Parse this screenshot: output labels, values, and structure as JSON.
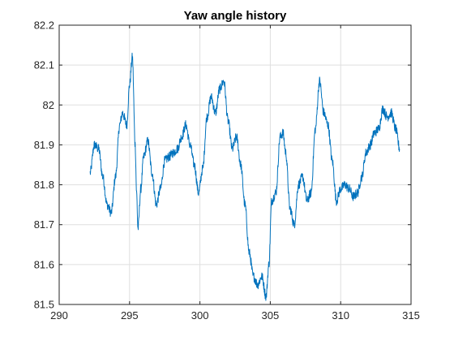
{
  "chart_data": {
    "type": "line",
    "title": "Yaw angle history",
    "xlabel": "",
    "ylabel": "",
    "xlim": [
      290,
      315
    ],
    "ylim": [
      81.5,
      82.2
    ],
    "x_ticks": [
      290,
      295,
      300,
      305,
      310,
      315
    ],
    "y_ticks": [
      81.5,
      81.6,
      81.7,
      81.8,
      81.9,
      82,
      82.1,
      82.2
    ],
    "x_tick_labels": [
      "290",
      "295",
      "300",
      "305",
      "310",
      "315"
    ],
    "y_tick_labels": [
      "81.5",
      "81.6",
      "81.7",
      "81.8",
      "81.9",
      "82",
      "82.1",
      "82.2"
    ],
    "grid": true,
    "legend": "none",
    "series": [
      {
        "color": "#0072BD",
        "noise_amplitude": 0.012,
        "x": [
          292.2,
          292.5,
          292.8,
          293.1,
          293.4,
          293.7,
          294.0,
          294.3,
          294.5,
          294.8,
          295.0,
          295.2,
          295.4,
          295.5,
          295.6,
          295.8,
          296.0,
          296.3,
          296.6,
          296.9,
          297.2,
          297.5,
          297.8,
          298.1,
          298.4,
          298.7,
          299.0,
          299.3,
          299.6,
          299.9,
          300.2,
          300.5,
          300.8,
          301.1,
          301.4,
          301.7,
          302.0,
          302.3,
          302.6,
          302.9,
          303.2,
          303.5,
          303.8,
          304.1,
          304.4,
          304.7,
          304.9,
          305.1,
          305.4,
          305.7,
          305.9,
          306.1,
          306.4,
          306.7,
          307.0,
          307.3,
          307.6,
          307.9,
          308.2,
          308.5,
          308.8,
          309.1,
          309.4,
          309.7,
          310.0,
          310.3,
          310.6,
          310.9,
          311.2,
          311.5,
          311.8,
          312.1,
          312.4,
          312.7,
          313.0,
          313.3,
          313.6,
          313.9,
          314.2
        ],
        "y": [
          81.83,
          81.9,
          81.89,
          81.82,
          81.75,
          81.73,
          81.82,
          81.95,
          81.98,
          81.95,
          82.05,
          82.12,
          81.9,
          81.78,
          81.69,
          81.79,
          81.87,
          81.91,
          81.83,
          81.75,
          81.79,
          81.86,
          81.87,
          81.88,
          81.89,
          81.92,
          81.95,
          81.9,
          81.85,
          81.78,
          81.84,
          81.97,
          82.02,
          81.98,
          82.04,
          82.06,
          81.96,
          81.89,
          81.92,
          81.85,
          81.75,
          81.63,
          81.57,
          81.55,
          81.57,
          81.52,
          81.6,
          81.76,
          81.78,
          81.92,
          81.93,
          81.88,
          81.74,
          81.7,
          81.8,
          81.82,
          81.76,
          81.78,
          81.94,
          82.06,
          81.98,
          81.95,
          81.86,
          81.76,
          81.79,
          81.8,
          81.79,
          81.77,
          81.78,
          81.82,
          81.88,
          81.9,
          81.93,
          81.94,
          81.99,
          81.97,
          81.98,
          81.94,
          81.89
        ]
      }
    ]
  }
}
